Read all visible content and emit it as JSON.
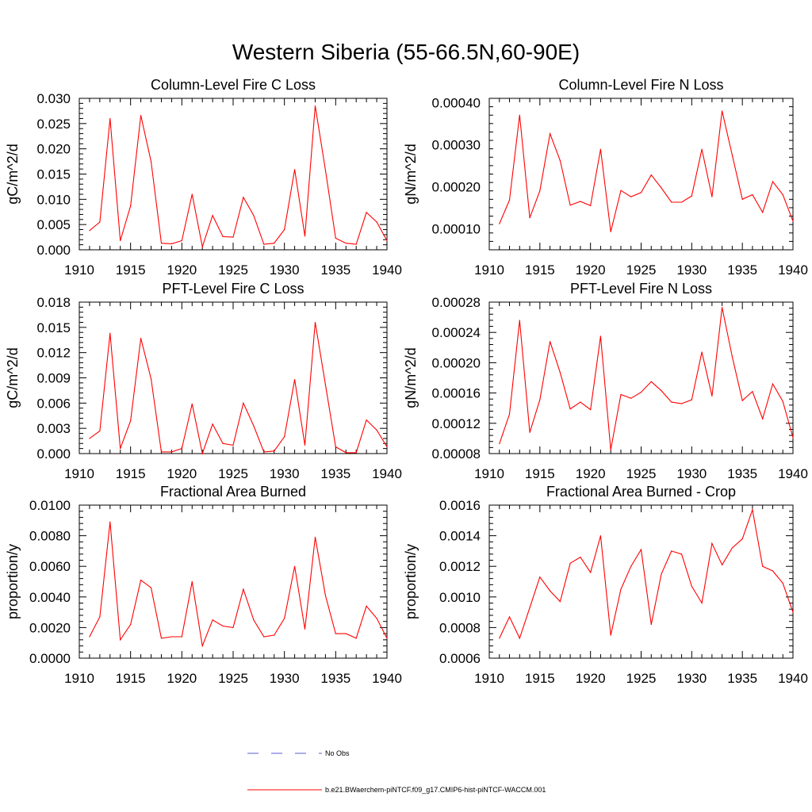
{
  "figure": {
    "title": "Western Siberia (55-66.5N,60-90E)"
  },
  "legend": {
    "entries": [
      {
        "label": "No Obs",
        "color": "#5a5ad6",
        "dash": "dashed"
      },
      {
        "label": "b.e21.BWaerchem-piNTCF.f09_g17.CMIP6-hist-piNTCF-WACCM.001",
        "color": "#ff0000",
        "dash": "solid"
      }
    ]
  },
  "chart_data": [
    {
      "type": "line",
      "title": "Column-Level Fire C Loss",
      "xlabel": "",
      "ylabel": "gC/m^2/d",
      "xlim": [
        1910,
        1940
      ],
      "ylim": [
        0.0,
        0.03
      ],
      "xticks": [
        "1910",
        "1915",
        "1920",
        "1925",
        "1930",
        "1935",
        "1940"
      ],
      "yticks": [
        "0.000",
        "0.005",
        "0.010",
        "0.015",
        "0.020",
        "0.025",
        "0.030"
      ],
      "x": [
        1911,
        1912,
        1913,
        1914,
        1915,
        1916,
        1917,
        1918,
        1919,
        1920,
        1921,
        1922,
        1923,
        1924,
        1925,
        1926,
        1927,
        1928,
        1929,
        1930,
        1931,
        1932,
        1933,
        1934,
        1935,
        1936,
        1937,
        1938,
        1939,
        1940
      ],
      "series": [
        {
          "color": "#ff0000",
          "values": [
            0.0038,
            0.0055,
            0.026,
            0.0018,
            0.0087,
            0.0266,
            0.0175,
            0.0013,
            0.0012,
            0.0018,
            0.011,
            0.0006,
            0.0068,
            0.0026,
            0.0025,
            0.0104,
            0.0068,
            0.0011,
            0.0013,
            0.004,
            0.0159,
            0.0027,
            0.0285,
            0.0158,
            0.0023,
            0.0013,
            0.0011,
            0.0074,
            0.0055,
            0.0018
          ]
        }
      ]
    },
    {
      "type": "line",
      "title": "Column-Level Fire N Loss",
      "xlabel": "",
      "ylabel": "gN/m^2/d",
      "xlim": [
        1910,
        1940
      ],
      "ylim": [
        5e-05,
        0.00041
      ],
      "xticks": [
        "1910",
        "1915",
        "1920",
        "1925",
        "1930",
        "1935",
        "1940"
      ],
      "yticks": [
        "0.00010",
        "0.00020",
        "0.00030",
        "0.00040"
      ],
      "x": [
        1911,
        1912,
        1913,
        1914,
        1915,
        1916,
        1917,
        1918,
        1919,
        1920,
        1921,
        1922,
        1923,
        1924,
        1925,
        1926,
        1927,
        1928,
        1929,
        1930,
        1931,
        1932,
        1933,
        1934,
        1935,
        1936,
        1937,
        1938,
        1939,
        1940
      ],
      "series": [
        {
          "color": "#ff0000",
          "values": [
            0.000112,
            0.000168,
            0.00037,
            0.000126,
            0.00019,
            0.000326,
            0.000262,
            0.000156,
            0.000165,
            0.000155,
            0.000289,
            9.3e-05,
            0.000191,
            0.000176,
            0.000186,
            0.000228,
            0.000197,
            0.000163,
            0.000163,
            0.000178,
            0.000289,
            0.000176,
            0.00038,
            0.000275,
            0.00017,
            0.000181,
            0.000139,
            0.000212,
            0.000181,
            0.000118
          ]
        }
      ]
    },
    {
      "type": "line",
      "title": "PFT-Level Fire C Loss",
      "xlabel": "",
      "ylabel": "gC/m^2/d",
      "xlim": [
        1910,
        1940
      ],
      "ylim": [
        0.0,
        0.018
      ],
      "xticks": [
        "1910",
        "1915",
        "1920",
        "1925",
        "1930",
        "1935",
        "1940"
      ],
      "yticks": [
        "0.000",
        "0.003",
        "0.006",
        "0.009",
        "0.012",
        "0.015",
        "0.018"
      ],
      "x": [
        1911,
        1912,
        1913,
        1914,
        1915,
        1916,
        1917,
        1918,
        1919,
        1920,
        1921,
        1922,
        1923,
        1924,
        1925,
        1926,
        1927,
        1928,
        1929,
        1930,
        1931,
        1932,
        1933,
        1934,
        1935,
        1936,
        1937,
        1938,
        1939,
        1940
      ],
      "series": [
        {
          "color": "#ff0000",
          "values": [
            0.0018,
            0.0027,
            0.0143,
            0.0006,
            0.0039,
            0.0137,
            0.0089,
            0.0002,
            0.0002,
            0.0006,
            0.0059,
            0.0,
            0.0035,
            0.0012,
            0.001,
            0.006,
            0.0033,
            0.0002,
            0.0003,
            0.002,
            0.0088,
            0.001,
            0.0156,
            0.0082,
            0.0008,
            0.0001,
            0.0001,
            0.004,
            0.0028,
            0.0008
          ]
        }
      ]
    },
    {
      "type": "line",
      "title": "PFT-Level Fire N Loss",
      "xlabel": "",
      "ylabel": "gN/m^2/d",
      "xlim": [
        1910,
        1940
      ],
      "ylim": [
        8e-05,
        0.00028
      ],
      "xticks": [
        "1910",
        "1915",
        "1920",
        "1925",
        "1930",
        "1935",
        "1940"
      ],
      "yticks": [
        "0.00008",
        "0.00012",
        "0.00016",
        "0.00020",
        "0.00024",
        "0.00028"
      ],
      "x": [
        1911,
        1912,
        1913,
        1914,
        1915,
        1916,
        1917,
        1918,
        1919,
        1920,
        1921,
        1922,
        1923,
        1924,
        1925,
        1926,
        1927,
        1928,
        1929,
        1930,
        1931,
        1932,
        1933,
        1934,
        1935,
        1936,
        1937,
        1938,
        1939,
        1940
      ],
      "series": [
        {
          "color": "#ff0000",
          "values": [
            9.3e-05,
            0.000132,
            0.000256,
            0.000108,
            0.000151,
            0.000228,
            0.000187,
            0.000139,
            0.000148,
            0.000138,
            0.000235,
            8.5e-05,
            0.000158,
            0.000153,
            0.000161,
            0.000175,
            0.000163,
            0.000148,
            0.000146,
            0.000151,
            0.000214,
            0.000156,
            0.000273,
            0.000208,
            0.00015,
            0.000162,
            0.000126,
            0.000172,
            0.000149,
            0.000101
          ]
        }
      ]
    },
    {
      "type": "line",
      "title": "Fractional Area Burned",
      "xlabel": "",
      "ylabel": "proportion/y",
      "xlim": [
        1910,
        1940
      ],
      "ylim": [
        0.0,
        0.01
      ],
      "xticks": [
        "1910",
        "1915",
        "1920",
        "1925",
        "1930",
        "1935",
        "1940"
      ],
      "yticks": [
        "0.0000",
        "0.0020",
        "0.0040",
        "0.0060",
        "0.0080",
        "0.0100"
      ],
      "x": [
        1911,
        1912,
        1913,
        1914,
        1915,
        1916,
        1917,
        1918,
        1919,
        1920,
        1921,
        1922,
        1923,
        1924,
        1925,
        1926,
        1927,
        1928,
        1929,
        1930,
        1931,
        1932,
        1933,
        1934,
        1935,
        1936,
        1937,
        1938,
        1939,
        1940
      ],
      "series": [
        {
          "color": "#ff0000",
          "values": [
            0.0014,
            0.0027,
            0.0089,
            0.0012,
            0.0022,
            0.0051,
            0.0046,
            0.0013,
            0.0014,
            0.0014,
            0.005,
            0.0008,
            0.0025,
            0.0021,
            0.002,
            0.0045,
            0.0025,
            0.0014,
            0.0015,
            0.0026,
            0.006,
            0.0019,
            0.0079,
            0.0041,
            0.0016,
            0.0016,
            0.0013,
            0.0034,
            0.0026,
            0.0013
          ]
        }
      ]
    },
    {
      "type": "line",
      "title": "Fractional Area Burned - Crop",
      "xlabel": "",
      "ylabel": "proportion/y",
      "xlim": [
        1910,
        1940
      ],
      "ylim": [
        0.0006,
        0.0016
      ],
      "xticks": [
        "1910",
        "1915",
        "1920",
        "1925",
        "1930",
        "1935",
        "1940"
      ],
      "yticks": [
        "0.0006",
        "0.0008",
        "0.0010",
        "0.0012",
        "0.0014",
        "0.0016"
      ],
      "x": [
        1911,
        1912,
        1913,
        1914,
        1915,
        1916,
        1917,
        1918,
        1919,
        1920,
        1921,
        1922,
        1923,
        1924,
        1925,
        1926,
        1927,
        1928,
        1929,
        1930,
        1931,
        1932,
        1933,
        1934,
        1935,
        1936,
        1937,
        1938,
        1939,
        1940
      ],
      "series": [
        {
          "color": "#ff0000",
          "values": [
            0.00073,
            0.00087,
            0.00073,
            0.00093,
            0.00113,
            0.00104,
            0.00097,
            0.00122,
            0.00126,
            0.00116,
            0.0014,
            0.00075,
            0.00105,
            0.0012,
            0.00131,
            0.00082,
            0.00115,
            0.0013,
            0.00128,
            0.00107,
            0.00096,
            0.00135,
            0.00121,
            0.00132,
            0.00138,
            0.00157,
            0.0012,
            0.00117,
            0.00109,
            0.0009
          ]
        }
      ]
    }
  ]
}
